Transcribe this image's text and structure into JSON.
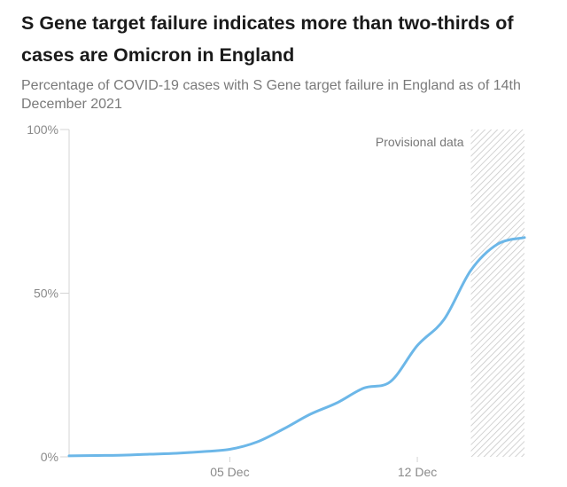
{
  "chart_data": {
    "type": "line",
    "title": "S Gene target failure indicates more than two-thirds of cases are Omicron in England",
    "subtitle": "Percentage of COVID-19 cases with S Gene target failure in England as of 14th December 2021",
    "xlabel": "",
    "ylabel": "",
    "x_ticks": [
      {
        "label": "05 Dec",
        "day": 5
      },
      {
        "label": "12 Dec",
        "day": 12
      }
    ],
    "y_ticks": [
      {
        "label": "0%",
        "value": 0
      },
      {
        "label": "50%",
        "value": 50
      },
      {
        "label": "100%",
        "value": 100
      }
    ],
    "ylim": [
      0,
      100
    ],
    "xlim": [
      -1,
      16
    ],
    "grid": false,
    "annotation": {
      "text": "Provisional data",
      "range": [
        14,
        16
      ]
    },
    "series": [
      {
        "color": "#6cb7e8",
        "x": [
          -1,
          0,
          1,
          2,
          3,
          4,
          5,
          6,
          7,
          8,
          9,
          10,
          11,
          12,
          13,
          14,
          15,
          16
        ],
        "y": [
          0.3,
          0.4,
          0.5,
          0.8,
          1.1,
          1.6,
          2.3,
          4.5,
          8.5,
          13,
          16.5,
          21,
          23,
          34,
          42,
          57,
          65,
          67
        ]
      }
    ]
  }
}
